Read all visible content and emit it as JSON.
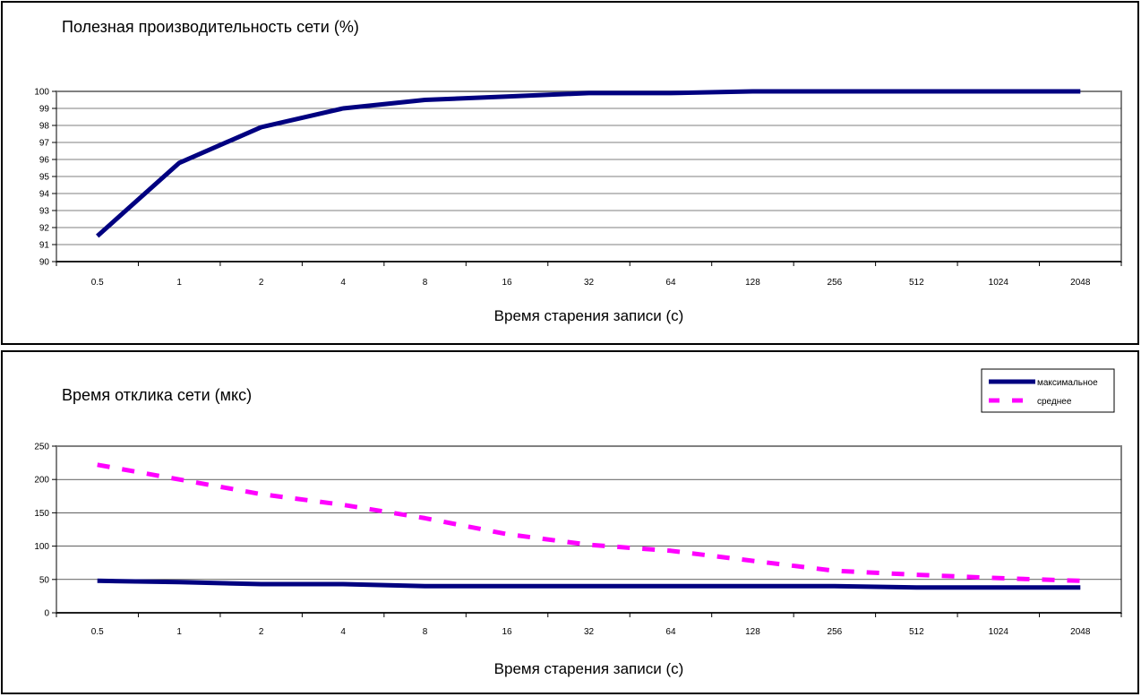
{
  "chart_data": [
    {
      "type": "line",
      "title": "Полезная производительность сети (%)",
      "xlabel": "Время старения записи (с)",
      "ylabel": "",
      "categories": [
        "0.5",
        "1",
        "2",
        "4",
        "8",
        "16",
        "32",
        "64",
        "128",
        "256",
        "512",
        "1024",
        "2048"
      ],
      "ylim": [
        90,
        100
      ],
      "yticks": [
        "90",
        "91",
        "92",
        "93",
        "94",
        "95",
        "96",
        "97",
        "98",
        "99",
        "100"
      ],
      "grid": true,
      "legend": "none",
      "series": [
        {
          "name": "",
          "values": [
            91.5,
            95.8,
            97.9,
            99.0,
            99.5,
            99.7,
            99.9,
            99.9,
            100,
            100,
            100,
            100,
            100
          ],
          "color": "#000080",
          "style": "solid"
        }
      ]
    },
    {
      "type": "line",
      "title": "Время отклика сети (мкс)",
      "xlabel": "Время старения записи (с)",
      "ylabel": "",
      "categories": [
        "0.5",
        "1",
        "2",
        "4",
        "8",
        "16",
        "32",
        "64",
        "128",
        "256",
        "512",
        "1024",
        "2048"
      ],
      "ylim": [
        0,
        250
      ],
      "yticks": [
        "0",
        "50",
        "100",
        "150",
        "200",
        "250"
      ],
      "grid": true,
      "legend": "top-right",
      "series": [
        {
          "name": "максимальное",
          "values": [
            48,
            46,
            43,
            43,
            40,
            40,
            40,
            40,
            40,
            40,
            38,
            38,
            38
          ],
          "color": "#000080",
          "style": "solid"
        },
        {
          "name": "среднее",
          "values": [
            222,
            200,
            178,
            162,
            142,
            118,
            102,
            93,
            78,
            63,
            57,
            52,
            48
          ],
          "color": "#ff00ff",
          "style": "dashed"
        }
      ]
    }
  ]
}
